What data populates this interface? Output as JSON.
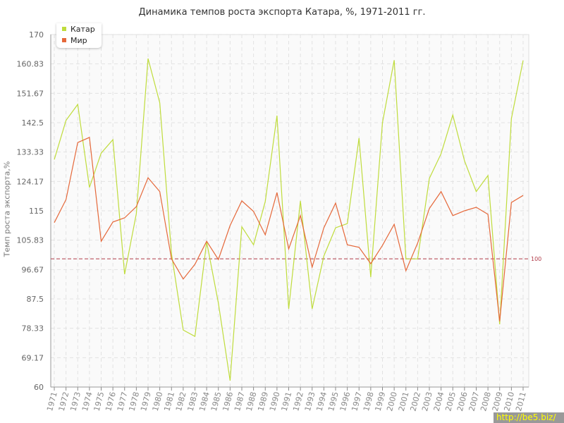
{
  "chart_data": {
    "type": "line",
    "title": "Динамика темпов роста экспорта Катара, %, 1971-2011 гг.",
    "ylabel": "Темп роста экспорта,%",
    "xlabel": "",
    "ylim": [
      60,
      170
    ],
    "yticks": [
      "60",
      "69.17",
      "78.33",
      "87.5",
      "96.67",
      "105.83",
      "115",
      "124.17",
      "133.33",
      "142.5",
      "151.67",
      "160.83",
      "170"
    ],
    "grid": true,
    "legend_position": "top-left",
    "x": [
      1971,
      1972,
      1973,
      1974,
      1975,
      1976,
      1977,
      1978,
      1979,
      1980,
      1981,
      1982,
      1983,
      1984,
      1985,
      1986,
      1987,
      1988,
      1989,
      1990,
      1991,
      1992,
      1993,
      1994,
      1995,
      1996,
      1997,
      1998,
      1999,
      2000,
      2001,
      2002,
      2003,
      2004,
      2005,
      2006,
      2007,
      2008,
      2009,
      2010,
      2011
    ],
    "series": [
      {
        "name": "Катар",
        "color": "#bfdc3c",
        "values": [
          131,
          143.2,
          148.2,
          122.3,
          133,
          137.2,
          95.2,
          114.1,
          162.5,
          148.7,
          101.6,
          77.8,
          75.8,
          105.3,
          86.2,
          62,
          110,
          104.4,
          117.9,
          144.7,
          84.4,
          118.1,
          84.4,
          100.9,
          109.7,
          111,
          137.7,
          94.3,
          142.5,
          162,
          100,
          100,
          125.1,
          132.8,
          144.9,
          130.6,
          121,
          126,
          79.6,
          143.8,
          161.9
        ]
      },
      {
        "name": "Мир",
        "color": "#e5683a",
        "values": [
          111.3,
          118.5,
          136.3,
          137.9,
          105.5,
          111.5,
          112.8,
          116.3,
          125.3,
          121,
          100,
          93.7,
          98.3,
          105.5,
          99.8,
          110.4,
          118.1,
          114.8,
          107.5,
          120.7,
          103.1,
          113.5,
          97.4,
          109.7,
          117.4,
          104.4,
          103.6,
          98.5,
          104.2,
          110.8,
          96.3,
          104.9,
          115.7,
          121,
          113.5,
          115,
          116.1,
          113.9,
          80.5,
          117.6,
          119.8
        ]
      }
    ],
    "reference_line": {
      "value": 100,
      "label": "100",
      "color": "#b03a48"
    }
  },
  "watermark": "http://be5.biz/"
}
